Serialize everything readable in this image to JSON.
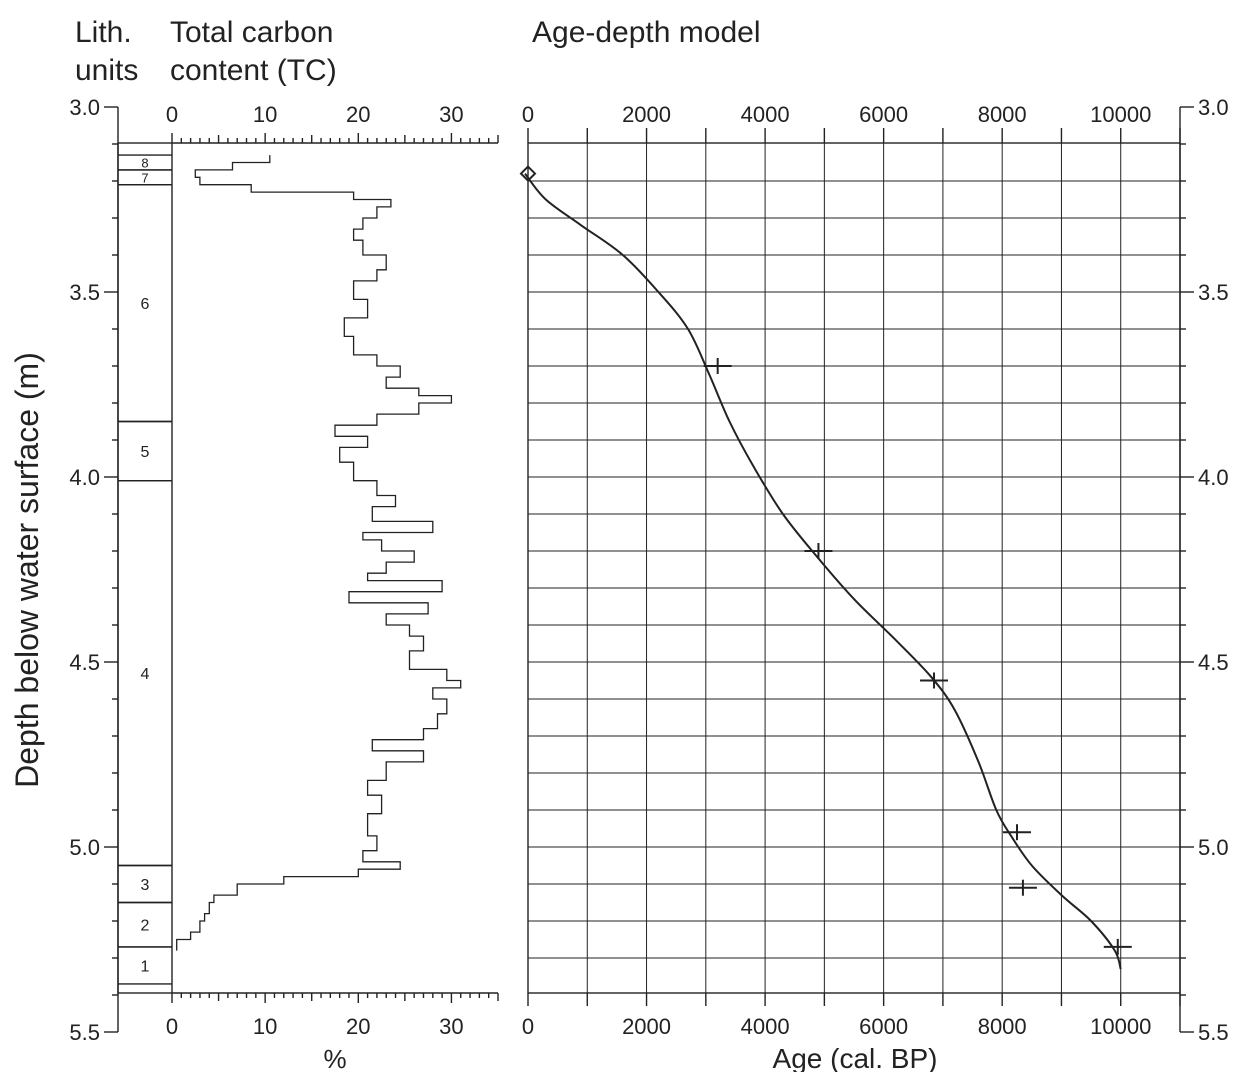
{
  "headers": {
    "lith_line1": "Lith.",
    "lith_line2": "units",
    "tc_line1": "Total carbon",
    "tc_line2": "content (TC)",
    "model_title": "Age-depth model"
  },
  "chart_data": [
    {
      "type": "table",
      "name": "lithological-units",
      "ylabel": "Depth below water surface (m)",
      "ylim": [
        3.0,
        5.5
      ],
      "yticks": [
        "3.0",
        "3.5",
        "4.0",
        "4.5",
        "5.0",
        "5.5"
      ],
      "units": [
        {
          "label": "8",
          "top": 3.13,
          "bottom": 3.17
        },
        {
          "label": "7",
          "top": 3.17,
          "bottom": 3.21
        },
        {
          "label": "6",
          "top": 3.21,
          "bottom": 3.85
        },
        {
          "label": "5",
          "top": 3.85,
          "bottom": 4.01
        },
        {
          "label": "4",
          "top": 4.01,
          "bottom": 5.05
        },
        {
          "label": "3",
          "top": 5.05,
          "bottom": 5.15
        },
        {
          "label": "2",
          "top": 5.15,
          "bottom": 5.27
        },
        {
          "label": "1",
          "top": 5.27,
          "bottom": 5.37
        }
      ]
    },
    {
      "type": "line",
      "name": "total-carbon-content",
      "xlabel": "%",
      "xlim": [
        0,
        35
      ],
      "xticks": [
        "0",
        "10",
        "20",
        "30"
      ],
      "ylim": [
        3.0,
        5.5
      ],
      "step": true,
      "points": [
        [
          10.5,
          3.13
        ],
        [
          10.5,
          3.15
        ],
        [
          6.5,
          3.15
        ],
        [
          6.5,
          3.17
        ],
        [
          2.5,
          3.17
        ],
        [
          2.5,
          3.19
        ],
        [
          3.0,
          3.19
        ],
        [
          3.0,
          3.21
        ],
        [
          8.5,
          3.21
        ],
        [
          8.5,
          3.23
        ],
        [
          19.5,
          3.23
        ],
        [
          19.5,
          3.25
        ],
        [
          23.5,
          3.25
        ],
        [
          23.5,
          3.27
        ],
        [
          22.0,
          3.27
        ],
        [
          22.0,
          3.3
        ],
        [
          20.5,
          3.3
        ],
        [
          20.5,
          3.33
        ],
        [
          19.5,
          3.33
        ],
        [
          19.5,
          3.36
        ],
        [
          20.5,
          3.36
        ],
        [
          20.5,
          3.4
        ],
        [
          23.0,
          3.4
        ],
        [
          23.0,
          3.44
        ],
        [
          22.0,
          3.44
        ],
        [
          22.0,
          3.47
        ],
        [
          19.5,
          3.47
        ],
        [
          19.5,
          3.52
        ],
        [
          21.0,
          3.52
        ],
        [
          21.0,
          3.57
        ],
        [
          18.5,
          3.57
        ],
        [
          18.5,
          3.62
        ],
        [
          19.5,
          3.62
        ],
        [
          19.5,
          3.67
        ],
        [
          22.0,
          3.67
        ],
        [
          22.0,
          3.7
        ],
        [
          24.5,
          3.7
        ],
        [
          24.5,
          3.73
        ],
        [
          23.0,
          3.73
        ],
        [
          23.0,
          3.76
        ],
        [
          26.5,
          3.76
        ],
        [
          26.5,
          3.78
        ],
        [
          30.0,
          3.78
        ],
        [
          30.0,
          3.8
        ],
        [
          26.5,
          3.8
        ],
        [
          26.5,
          3.83
        ],
        [
          22.0,
          3.83
        ],
        [
          22.0,
          3.86
        ],
        [
          17.5,
          3.86
        ],
        [
          17.5,
          3.89
        ],
        [
          21.0,
          3.89
        ],
        [
          21.0,
          3.92
        ],
        [
          18.0,
          3.92
        ],
        [
          18.0,
          3.96
        ],
        [
          19.5,
          3.96
        ],
        [
          19.5,
          4.01
        ],
        [
          22.0,
          4.01
        ],
        [
          22.0,
          4.05
        ],
        [
          24.0,
          4.05
        ],
        [
          24.0,
          4.08
        ],
        [
          21.5,
          4.08
        ],
        [
          21.5,
          4.12
        ],
        [
          28.0,
          4.12
        ],
        [
          28.0,
          4.15
        ],
        [
          20.5,
          4.15
        ],
        [
          20.5,
          4.17
        ],
        [
          22.5,
          4.17
        ],
        [
          22.5,
          4.2
        ],
        [
          26.0,
          4.2
        ],
        [
          26.0,
          4.23
        ],
        [
          23.0,
          4.23
        ],
        [
          23.0,
          4.26
        ],
        [
          21.0,
          4.26
        ],
        [
          21.0,
          4.28
        ],
        [
          29.0,
          4.28
        ],
        [
          29.0,
          4.31
        ],
        [
          19.0,
          4.31
        ],
        [
          19.0,
          4.34
        ],
        [
          27.5,
          4.34
        ],
        [
          27.5,
          4.37
        ],
        [
          23.0,
          4.37
        ],
        [
          23.0,
          4.4
        ],
        [
          25.5,
          4.4
        ],
        [
          25.5,
          4.43
        ],
        [
          27.0,
          4.43
        ],
        [
          27.0,
          4.47
        ],
        [
          25.5,
          4.47
        ],
        [
          25.5,
          4.52
        ],
        [
          29.5,
          4.52
        ],
        [
          29.5,
          4.55
        ],
        [
          31.0,
          4.55
        ],
        [
          31.0,
          4.57
        ],
        [
          28.0,
          4.57
        ],
        [
          28.0,
          4.6
        ],
        [
          29.5,
          4.6
        ],
        [
          29.5,
          4.64
        ],
        [
          28.5,
          4.64
        ],
        [
          28.5,
          4.68
        ],
        [
          27.0,
          4.68
        ],
        [
          27.0,
          4.71
        ],
        [
          21.5,
          4.71
        ],
        [
          21.5,
          4.74
        ],
        [
          27.0,
          4.74
        ],
        [
          27.0,
          4.77
        ],
        [
          23.0,
          4.77
        ],
        [
          23.0,
          4.82
        ],
        [
          21.0,
          4.82
        ],
        [
          21.0,
          4.86
        ],
        [
          22.5,
          4.86
        ],
        [
          22.5,
          4.91
        ],
        [
          21.0,
          4.91
        ],
        [
          21.0,
          4.97
        ],
        [
          22.0,
          4.97
        ],
        [
          22.0,
          5.01
        ],
        [
          20.5,
          5.01
        ],
        [
          20.5,
          5.04
        ],
        [
          24.5,
          5.04
        ],
        [
          24.5,
          5.06
        ],
        [
          20.0,
          5.06
        ],
        [
          20.0,
          5.08
        ],
        [
          12.0,
          5.08
        ],
        [
          12.0,
          5.1
        ],
        [
          7.0,
          5.1
        ],
        [
          7.0,
          5.13
        ],
        [
          4.5,
          5.13
        ],
        [
          4.5,
          5.15
        ],
        [
          4.0,
          5.15
        ],
        [
          4.0,
          5.18
        ],
        [
          3.5,
          5.18
        ],
        [
          3.5,
          5.2
        ],
        [
          3.0,
          5.2
        ],
        [
          3.0,
          5.23
        ],
        [
          2.0,
          5.23
        ],
        [
          2.0,
          5.25
        ],
        [
          0.5,
          5.25
        ],
        [
          0.5,
          5.28
        ]
      ]
    },
    {
      "type": "line",
      "name": "age-depth-model",
      "title": "Age-depth model",
      "xlabel": "Age (cal. BP)",
      "xlim": [
        0,
        11000
      ],
      "xticks": [
        "0",
        "2000",
        "4000",
        "6000",
        "8000",
        "10000"
      ],
      "ylim": [
        3.0,
        5.5
      ],
      "yticks": [
        "3.0",
        "3.5",
        "4.0",
        "4.5",
        "5.0",
        "5.5"
      ],
      "grid": true,
      "curve": [
        [
          -50,
          3.18
        ],
        [
          300,
          3.25
        ],
        [
          900,
          3.32
        ],
        [
          1600,
          3.4
        ],
        [
          2200,
          3.5
        ],
        [
          2700,
          3.6
        ],
        [
          3050,
          3.72
        ],
        [
          3400,
          3.85
        ],
        [
          3800,
          3.97
        ],
        [
          4300,
          4.1
        ],
        [
          4900,
          4.22
        ],
        [
          5500,
          4.33
        ],
        [
          6200,
          4.44
        ],
        [
          6800,
          4.54
        ],
        [
          7200,
          4.63
        ],
        [
          7600,
          4.77
        ],
        [
          7900,
          4.9
        ],
        [
          8150,
          4.97
        ],
        [
          8500,
          5.05
        ],
        [
          9000,
          5.13
        ],
        [
          9500,
          5.2
        ],
        [
          9900,
          5.28
        ],
        [
          10000,
          5.33
        ]
      ],
      "dated_points": [
        {
          "age": 3200,
          "depth": 3.7
        },
        {
          "age": 4900,
          "depth": 4.2
        },
        {
          "age": 6850,
          "depth": 4.55
        },
        {
          "age": 8250,
          "depth": 4.96
        },
        {
          "age": 8350,
          "depth": 5.11
        },
        {
          "age": 9950,
          "depth": 5.27
        }
      ],
      "surface_marker": {
        "age": 0,
        "depth": 3.18
      }
    }
  ]
}
